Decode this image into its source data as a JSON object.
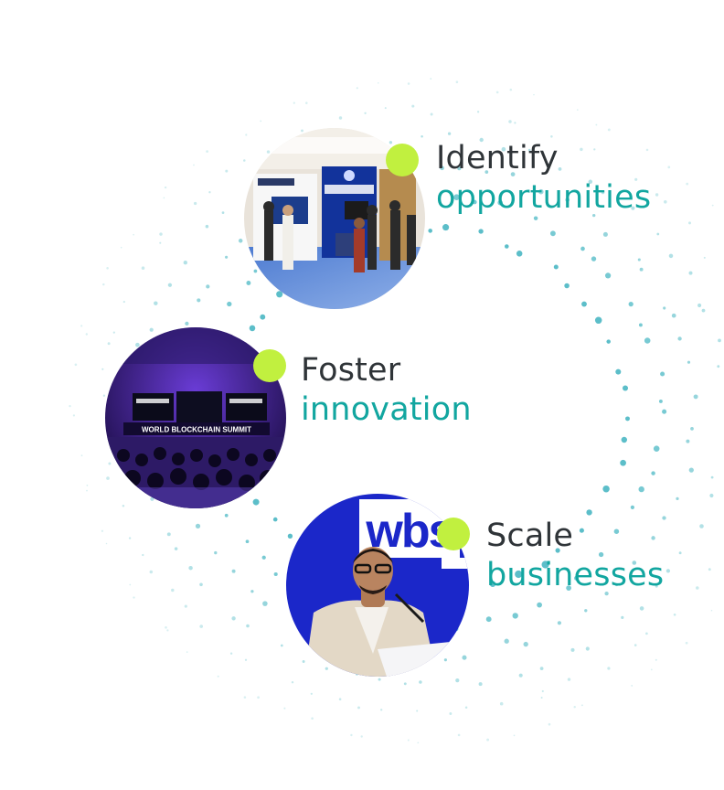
{
  "colors": {
    "bullet": "#c1f03f",
    "heading_dark": "#2f3438",
    "heading_teal": "#12a6a0",
    "dots": "#3fb3c0"
  },
  "items": [
    {
      "line1": "Identify",
      "line2": "opportunities",
      "photo": "exhibition-booth-photo"
    },
    {
      "line1": "Foster",
      "line2": "innovation",
      "photo": "conference-stage-photo"
    },
    {
      "line1": "Scale",
      "line2": "businesses",
      "photo": "speaker-podium-photo"
    }
  ],
  "photo_signs": {
    "stage_banner": "WORLD BLOCKCHAIN SUMMIT",
    "backdrop_logo": "wbs"
  }
}
